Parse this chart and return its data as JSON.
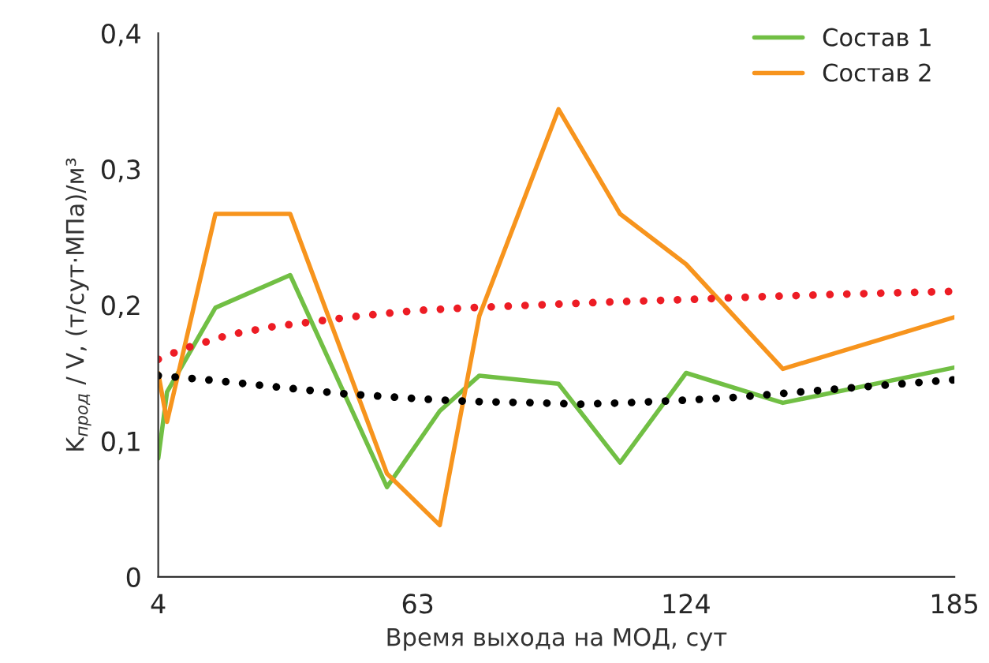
{
  "chart_data": {
    "type": "line",
    "xlabel": "Время выхода на МОД, сут",
    "ylabel": "K$_{прод}$ / V, (т/сут·МПа)/м³",
    "xlim": [
      4,
      185
    ],
    "xticks": [
      4,
      63,
      124,
      185
    ],
    "ylim": [
      0,
      0.4
    ],
    "yticks": [
      {
        "value": 0,
        "label": "0"
      },
      {
        "value": 0.1,
        "label": "0,1"
      },
      {
        "value": 0.2,
        "label": "0,2"
      },
      {
        "value": 0.3,
        "label": "0,3"
      },
      {
        "value": 0.4,
        "label": "0,4"
      }
    ],
    "grid": false,
    "legend": "top right",
    "line_style": "solid",
    "marker": "none",
    "series": [
      {
        "name": "Состав 1",
        "color": "#71bf44",
        "x": [
          4,
          6,
          17,
          34,
          56,
          68,
          77,
          95,
          109,
          124,
          146,
          185
        ],
        "values": [
          0.087,
          0.136,
          0.198,
          0.222,
          0.066,
          0.122,
          0.148,
          0.142,
          0.084,
          0.15,
          0.128,
          0.154
        ]
      },
      {
        "name": "Состав 2",
        "color": "#f7941d",
        "x": [
          4,
          6,
          17,
          34,
          56,
          68,
          77,
          95,
          109,
          124,
          146,
          185
        ],
        "values": [
          0.15,
          0.114,
          0.267,
          0.267,
          0.076,
          0.038,
          0.192,
          0.344,
          0.267,
          0.23,
          0.153,
          0.191
        ]
      },
      {
        "color": "#ed1c24",
        "line_style": "dotted",
        "x": [
          4,
          10,
          20,
          30,
          40,
          50,
          63,
          75,
          90,
          105,
          124,
          140,
          160,
          185
        ],
        "values": [
          0.16,
          0.168,
          0.178,
          0.184,
          0.188,
          0.192,
          0.196,
          0.198,
          0.2,
          0.202,
          0.204,
          0.206,
          0.208,
          0.21
        ]
      },
      {
        "color": "#000000",
        "line_style": "dotted",
        "x": [
          4,
          15,
          30,
          45,
          63,
          75,
          90,
          100,
          110,
          124,
          135,
          150,
          165,
          185
        ],
        "values": [
          0.148,
          0.145,
          0.14,
          0.135,
          0.131,
          0.129,
          0.128,
          0.127,
          0.128,
          0.13,
          0.132,
          0.136,
          0.14,
          0.145
        ]
      }
    ]
  }
}
